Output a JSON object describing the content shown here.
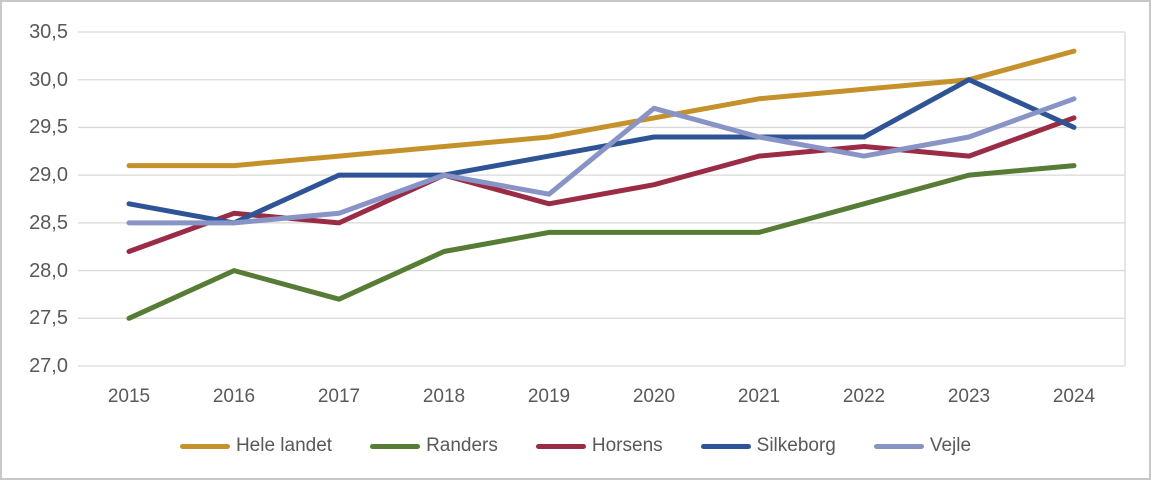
{
  "figure": {
    "background": "#FFFFFF",
    "border_color": "#C8C8C8"
  },
  "chart_data": {
    "type": "line",
    "title": "",
    "xlabel": "",
    "ylabel": "",
    "categories": [
      "2015",
      "2016",
      "2017",
      "2018",
      "2019",
      "2020",
      "2021",
      "2022",
      "2023",
      "2024"
    ],
    "series": [
      {
        "name": "Hele landet",
        "color": "#C5912B",
        "values": [
          29.1,
          29.1,
          29.2,
          29.3,
          29.4,
          29.6,
          29.8,
          29.9,
          30.0,
          30.3
        ]
      },
      {
        "name": "Randers",
        "color": "#567C35",
        "values": [
          27.5,
          28.0,
          27.7,
          28.2,
          28.4,
          28.4,
          28.4,
          28.7,
          29.0,
          29.1
        ]
      },
      {
        "name": "Horsens",
        "color": "#9A2C45",
        "values": [
          28.2,
          28.6,
          28.5,
          29.0,
          28.7,
          28.9,
          29.2,
          29.3,
          29.2,
          29.6
        ]
      },
      {
        "name": "Silkeborg",
        "color": "#2F5496",
        "values": [
          28.7,
          28.5,
          29.0,
          29.0,
          29.2,
          29.4,
          29.4,
          29.4,
          30.0,
          29.5
        ]
      },
      {
        "name": "Vejle",
        "color": "#8894C6",
        "values": [
          28.5,
          28.5,
          28.6,
          29.0,
          28.8,
          29.7,
          29.4,
          29.2,
          29.4,
          29.8
        ]
      }
    ],
    "ylim": [
      27.0,
      30.5
    ],
    "ytick_step": 0.5,
    "ytick_labels": [
      "30,5",
      "30,0",
      "29,5",
      "29,0",
      "28,5",
      "28,0",
      "27,5",
      "27,0"
    ],
    "decimal_separator": ",",
    "grid": true,
    "gridline_color": "#D9D9D9",
    "axis_text_color": "#595959",
    "legend_position": "bottom"
  }
}
